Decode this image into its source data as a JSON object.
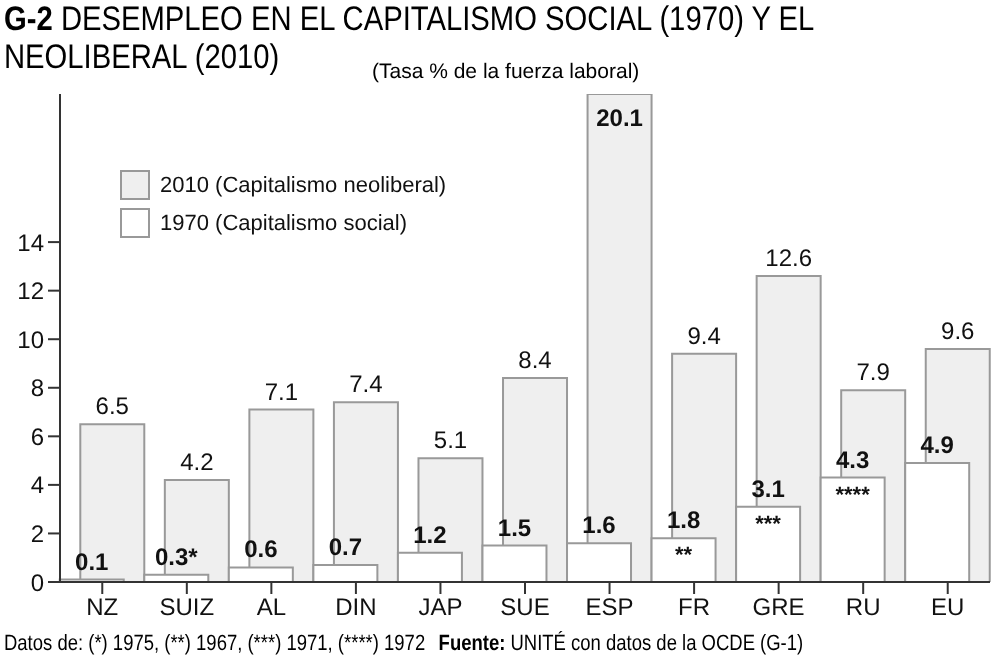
{
  "chart_data": {
    "type": "bar",
    "title": "G-2 DESEMPLEO EN EL CAPITALISMO SOCIAL (1970) Y EL NEOLIBERAL (2010)",
    "subtitle": "(Tasa % de la fuerza laboral)",
    "categories": [
      "NZ",
      "SUIZ",
      "AL",
      "DIN",
      "JAP",
      "SUE",
      "ESP",
      "FR",
      "GRE",
      "RU",
      "EU"
    ],
    "series": [
      {
        "name": "2010 (Capitalismo neoliberal)",
        "color": "#efefef",
        "values": [
          6.5,
          4.2,
          7.1,
          7.4,
          5.1,
          8.4,
          20.1,
          9.4,
          12.6,
          7.9,
          9.6
        ],
        "value_labels": [
          "6.5",
          "4.2",
          "7.1",
          "7.4",
          "5.1",
          "8.4",
          "20.1",
          "9.4",
          "12.6",
          "7.9",
          "9.6"
        ]
      },
      {
        "name": "1970 (Capitalismo social)",
        "color": "#ffffff",
        "values": [
          0.1,
          0.3,
          0.6,
          0.7,
          1.2,
          1.5,
          1.6,
          1.8,
          3.1,
          4.3,
          4.9
        ],
        "value_labels": [
          "0.1",
          "0.3*",
          "0.6",
          "0.7",
          "1.2",
          "1.5",
          "1.6",
          "1.8 **",
          "3.1 ***",
          "4.3 ****",
          "4.9"
        ]
      }
    ],
    "ylim": [
      0,
      20.1
    ],
    "yticks": [
      0,
      2,
      4,
      6,
      8,
      10,
      12,
      14
    ],
    "grid": false,
    "legend": "top left",
    "annotations": [
      "Datos de: (*) 1975, (**) 1967, (***) 1971, (****) 1972",
      "Fuente: UNITÉ con datos de la OCDE (G-1)"
    ]
  }
}
